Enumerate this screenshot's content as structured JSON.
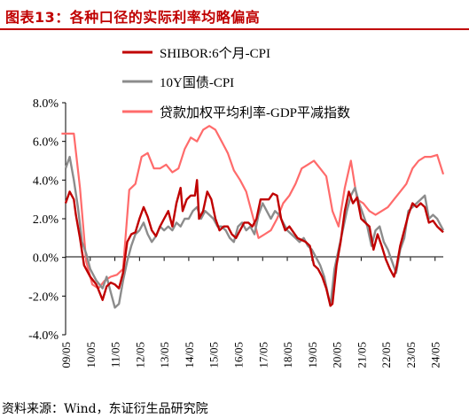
{
  "header": {
    "title": "图表13：各种口径的实际利率均略偏高"
  },
  "footer": {
    "source": "资料来源：Wind，东证衍生品研究院"
  },
  "colors": {
    "shibor": "#c00000",
    "treasury": "#8c8c8c",
    "loan": "#ff6b6b",
    "title": "#c00000",
    "axis": "#000000"
  },
  "chart_data": {
    "type": "line",
    "title": "",
    "xlabel": "",
    "ylabel": "",
    "ylim": [
      -4,
      8
    ],
    "yticks": [
      -4,
      -2,
      0,
      2,
      4,
      6,
      8
    ],
    "ytick_labels": [
      "-4.0%",
      "-2.0%",
      "0.0%",
      "2.0%",
      "4.0%",
      "6.0%",
      "8.0%"
    ],
    "x_range": [
      "2009-05",
      "2024-09"
    ],
    "xtick_labels": [
      "09/05",
      "10/05",
      "11/05",
      "12/05",
      "13/05",
      "14/05",
      "15/05",
      "16/05",
      "17/05",
      "18/05",
      "19/05",
      "20/05",
      "21/05",
      "22/05",
      "23/05",
      "24/05"
    ],
    "legend_position": "top-center",
    "grid": false,
    "series": [
      {
        "name": "SHIBOR:6个月-CPI",
        "color": "#c00000",
        "points": [
          [
            "2009-05",
            2.8
          ],
          [
            "2009-07",
            3.4
          ],
          [
            "2009-09",
            3.0
          ],
          [
            "2009-10",
            2.2
          ],
          [
            "2009-12",
            1.0
          ],
          [
            "2010-02",
            -0.4
          ],
          [
            "2010-05",
            -1.0
          ],
          [
            "2010-08",
            -1.4
          ],
          [
            "2010-11",
            -2.2
          ],
          [
            "2011-01",
            -1.5
          ],
          [
            "2011-03",
            -1.3
          ],
          [
            "2011-05",
            -1.4
          ],
          [
            "2011-07",
            -1.6
          ],
          [
            "2011-09",
            -0.8
          ],
          [
            "2011-11",
            0.8
          ],
          [
            "2012-01",
            1.2
          ],
          [
            "2012-03",
            1.3
          ],
          [
            "2012-05",
            2.0
          ],
          [
            "2012-07",
            2.6
          ],
          [
            "2012-09",
            2.1
          ],
          [
            "2012-11",
            1.4
          ],
          [
            "2013-01",
            1.1
          ],
          [
            "2013-03",
            1.6
          ],
          [
            "2013-05",
            2.0
          ],
          [
            "2013-07",
            2.4
          ],
          [
            "2013-09",
            1.6
          ],
          [
            "2013-11",
            2.8
          ],
          [
            "2014-01",
            3.6
          ],
          [
            "2014-02",
            2.4
          ],
          [
            "2014-04",
            3.0
          ],
          [
            "2014-06",
            3.2
          ],
          [
            "2014-08",
            3.2
          ],
          [
            "2014-09",
            4.0
          ],
          [
            "2014-10",
            2.0
          ],
          [
            "2014-12",
            2.4
          ],
          [
            "2015-02",
            3.4
          ],
          [
            "2015-04",
            3.0
          ],
          [
            "2015-06",
            2.0
          ],
          [
            "2015-08",
            1.4
          ],
          [
            "2015-10",
            1.6
          ],
          [
            "2015-12",
            1.6
          ],
          [
            "2016-02",
            1.2
          ],
          [
            "2016-04",
            1.0
          ],
          [
            "2016-06",
            1.4
          ],
          [
            "2016-08",
            1.8
          ],
          [
            "2016-10",
            1.8
          ],
          [
            "2016-12",
            1.6
          ],
          [
            "2017-02",
            2.0
          ],
          [
            "2017-04",
            3.0
          ],
          [
            "2017-06",
            3.0
          ],
          [
            "2017-08",
            3.0
          ],
          [
            "2017-10",
            3.3
          ],
          [
            "2017-12",
            3.2
          ],
          [
            "2018-02",
            2.0
          ],
          [
            "2018-04",
            1.4
          ],
          [
            "2018-06",
            1.6
          ],
          [
            "2018-08",
            1.3
          ],
          [
            "2018-10",
            1.0
          ],
          [
            "2018-12",
            0.9
          ],
          [
            "2019-02",
            0.8
          ],
          [
            "2019-04",
            0.6
          ],
          [
            "2019-06",
            -0.4
          ],
          [
            "2019-08",
            -0.6
          ],
          [
            "2019-10",
            -1.0
          ],
          [
            "2019-12",
            -1.6
          ],
          [
            "2020-02",
            -2.5
          ],
          [
            "2020-03",
            -2.4
          ],
          [
            "2020-05",
            -0.4
          ],
          [
            "2020-07",
            0.8
          ],
          [
            "2020-09",
            2.4
          ],
          [
            "2020-11",
            3.4
          ],
          [
            "2021-01",
            2.8
          ],
          [
            "2021-03",
            3.1
          ],
          [
            "2021-05",
            2.0
          ],
          [
            "2021-07",
            1.8
          ],
          [
            "2021-09",
            1.6
          ],
          [
            "2021-11",
            0.4
          ],
          [
            "2022-01",
            1.2
          ],
          [
            "2022-03",
            0.6
          ],
          [
            "2022-05",
            -0.1
          ],
          [
            "2022-07",
            -0.6
          ],
          [
            "2022-09",
            -1.0
          ],
          [
            "2022-10",
            -0.6
          ],
          [
            "2022-12",
            0.6
          ],
          [
            "2023-02",
            1.4
          ],
          [
            "2023-04",
            2.2
          ],
          [
            "2023-06",
            2.8
          ],
          [
            "2023-08",
            2.6
          ],
          [
            "2023-10",
            2.8
          ],
          [
            "2023-12",
            2.6
          ],
          [
            "2024-02",
            1.8
          ],
          [
            "2024-04",
            1.9
          ],
          [
            "2024-06",
            1.6
          ],
          [
            "2024-08",
            1.4
          ],
          [
            "2024-09",
            1.3
          ]
        ]
      },
      {
        "name": "10Y国债-CPI",
        "color": "#8c8c8c",
        "points": [
          [
            "2009-05",
            4.6
          ],
          [
            "2009-07",
            5.2
          ],
          [
            "2009-09",
            4.0
          ],
          [
            "2009-11",
            2.6
          ],
          [
            "2010-01",
            0.8
          ],
          [
            "2010-03",
            0.2
          ],
          [
            "2010-05",
            -0.6
          ],
          [
            "2010-08",
            -1.2
          ],
          [
            "2010-11",
            -1.6
          ],
          [
            "2011-01",
            -1.0
          ],
          [
            "2011-03",
            -1.8
          ],
          [
            "2011-05",
            -2.6
          ],
          [
            "2011-07",
            -2.4
          ],
          [
            "2011-09",
            -1.2
          ],
          [
            "2011-11",
            -0.2
          ],
          [
            "2012-01",
            0.6
          ],
          [
            "2012-03",
            1.2
          ],
          [
            "2012-05",
            1.4
          ],
          [
            "2012-07",
            1.8
          ],
          [
            "2012-09",
            1.2
          ],
          [
            "2012-11",
            0.8
          ],
          [
            "2013-01",
            1.1
          ],
          [
            "2013-03",
            1.6
          ],
          [
            "2013-05",
            1.4
          ],
          [
            "2013-07",
            1.6
          ],
          [
            "2013-09",
            1.4
          ],
          [
            "2013-11",
            1.8
          ],
          [
            "2014-01",
            1.6
          ],
          [
            "2014-03",
            2.0
          ],
          [
            "2014-05",
            2.0
          ],
          [
            "2014-07",
            2.4
          ],
          [
            "2014-09",
            2.6
          ],
          [
            "2014-11",
            2.0
          ],
          [
            "2015-01",
            2.4
          ],
          [
            "2015-03",
            2.2
          ],
          [
            "2015-05",
            2.0
          ],
          [
            "2015-07",
            1.6
          ],
          [
            "2015-09",
            1.6
          ],
          [
            "2015-11",
            1.4
          ],
          [
            "2016-01",
            1.0
          ],
          [
            "2016-03",
            0.8
          ],
          [
            "2016-05",
            1.6
          ],
          [
            "2016-07",
            1.8
          ],
          [
            "2016-09",
            1.4
          ],
          [
            "2016-11",
            1.6
          ],
          [
            "2017-01",
            1.2
          ],
          [
            "2017-03",
            2.2
          ],
          [
            "2017-05",
            2.8
          ],
          [
            "2017-07",
            2.4
          ],
          [
            "2017-09",
            2.0
          ],
          [
            "2017-11",
            2.4
          ],
          [
            "2018-01",
            2.2
          ],
          [
            "2018-03",
            1.8
          ],
          [
            "2018-05",
            1.4
          ],
          [
            "2018-07",
            1.2
          ],
          [
            "2018-09",
            1.0
          ],
          [
            "2018-11",
            0.8
          ],
          [
            "2019-01",
            1.0
          ],
          [
            "2019-03",
            0.6
          ],
          [
            "2019-05",
            0.4
          ],
          [
            "2019-07",
            0.0
          ],
          [
            "2019-09",
            -0.4
          ],
          [
            "2019-11",
            -1.0
          ],
          [
            "2020-01",
            -2.0
          ],
          [
            "2020-02",
            -2.5
          ],
          [
            "2020-04",
            -0.6
          ],
          [
            "2020-06",
            0.4
          ],
          [
            "2020-08",
            1.4
          ],
          [
            "2020-10",
            2.4
          ],
          [
            "2020-12",
            3.2
          ],
          [
            "2021-02",
            3.6
          ],
          [
            "2021-04",
            2.8
          ],
          [
            "2021-06",
            2.2
          ],
          [
            "2021-08",
            1.6
          ],
          [
            "2021-10",
            0.6
          ],
          [
            "2021-12",
            1.4
          ],
          [
            "2022-02",
            1.6
          ],
          [
            "2022-04",
            0.8
          ],
          [
            "2022-06",
            0.4
          ],
          [
            "2022-08",
            -0.2
          ],
          [
            "2022-10",
            -0.8
          ],
          [
            "2022-12",
            0.4
          ],
          [
            "2023-02",
            1.0
          ],
          [
            "2023-04",
            2.4
          ],
          [
            "2023-06",
            2.6
          ],
          [
            "2023-08",
            2.8
          ],
          [
            "2023-10",
            3.0
          ],
          [
            "2023-12",
            3.2
          ],
          [
            "2024-02",
            2.0
          ],
          [
            "2024-04",
            2.2
          ],
          [
            "2024-06",
            2.0
          ],
          [
            "2024-08",
            1.6
          ],
          [
            "2024-09",
            1.4
          ]
        ]
      },
      {
        "name": "贷款加权平均利率-GDP平减指数",
        "color": "#ff6b6b",
        "points": [
          [
            "2009-03",
            6.4
          ],
          [
            "2009-09",
            6.4
          ],
          [
            "2009-12",
            3.6
          ],
          [
            "2010-03",
            -0.2
          ],
          [
            "2010-06",
            -1.4
          ],
          [
            "2010-09",
            -1.6
          ],
          [
            "2010-12",
            -1.2
          ],
          [
            "2011-03",
            -1.0
          ],
          [
            "2011-06",
            -0.9
          ],
          [
            "2011-09",
            -0.6
          ],
          [
            "2011-12",
            3.5
          ],
          [
            "2012-03",
            3.8
          ],
          [
            "2012-06",
            5.2
          ],
          [
            "2012-09",
            5.4
          ],
          [
            "2012-12",
            4.6
          ],
          [
            "2013-03",
            4.6
          ],
          [
            "2013-06",
            4.8
          ],
          [
            "2013-09",
            4.4
          ],
          [
            "2013-12",
            4.6
          ],
          [
            "2014-03",
            5.6
          ],
          [
            "2014-06",
            6.2
          ],
          [
            "2014-09",
            6.0
          ],
          [
            "2014-12",
            6.6
          ],
          [
            "2015-03",
            6.8
          ],
          [
            "2015-06",
            6.6
          ],
          [
            "2015-09",
            6.0
          ],
          [
            "2015-12",
            5.4
          ],
          [
            "2016-03",
            4.5
          ],
          [
            "2016-06",
            4.0
          ],
          [
            "2016-09",
            3.4
          ],
          [
            "2016-12",
            2.2
          ],
          [
            "2017-03",
            1.0
          ],
          [
            "2017-06",
            1.2
          ],
          [
            "2017-09",
            1.4
          ],
          [
            "2017-12",
            2.0
          ],
          [
            "2018-03",
            2.8
          ],
          [
            "2018-06",
            3.2
          ],
          [
            "2018-09",
            3.8
          ],
          [
            "2018-12",
            4.6
          ],
          [
            "2019-03",
            4.8
          ],
          [
            "2019-06",
            5.0
          ],
          [
            "2019-09",
            4.6
          ],
          [
            "2019-12",
            4.2
          ],
          [
            "2020-03",
            2.4
          ],
          [
            "2020-06",
            1.6
          ],
          [
            "2020-09",
            3.6
          ],
          [
            "2020-12",
            5.0
          ],
          [
            "2021-03",
            3.0
          ],
          [
            "2021-06",
            2.8
          ],
          [
            "2021-09",
            2.4
          ],
          [
            "2021-12",
            2.2
          ],
          [
            "2022-03",
            2.4
          ],
          [
            "2022-06",
            2.6
          ],
          [
            "2022-09",
            3.0
          ],
          [
            "2022-12",
            3.4
          ],
          [
            "2023-03",
            3.8
          ],
          [
            "2023-06",
            4.6
          ],
          [
            "2023-09",
            5.0
          ],
          [
            "2023-12",
            5.2
          ],
          [
            "2024-03",
            5.2
          ],
          [
            "2024-06",
            5.3
          ],
          [
            "2024-09",
            4.3
          ]
        ]
      }
    ]
  }
}
